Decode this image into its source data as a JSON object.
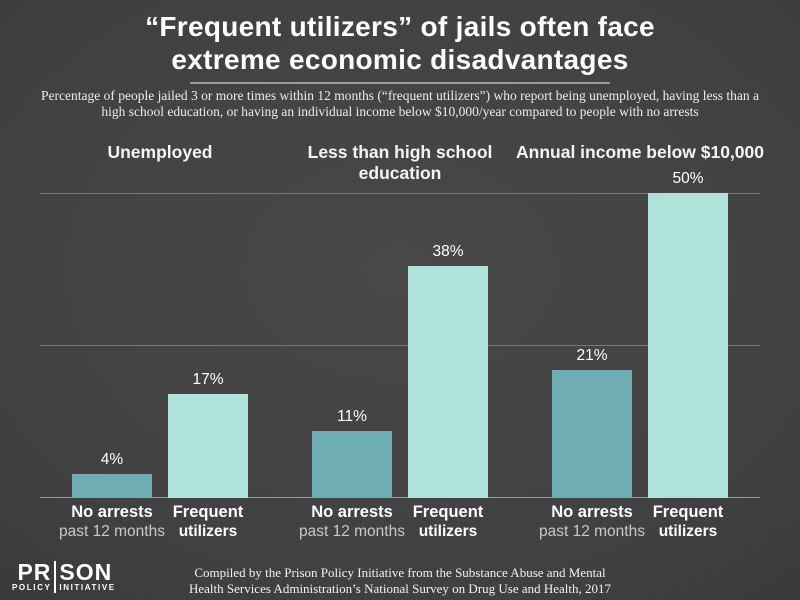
{
  "title": {
    "line1": "“Frequent utilizers” of jails often face",
    "line2": "extreme economic disadvantages"
  },
  "subtitle": "Percentage of people jailed 3 or more times within 12 months (“frequent utilizers”) who report being unemployed, having less than a high school education, or having an individual income below $10,000/year compared to people with no arrests",
  "footer": {
    "line1": "Compiled by the Prison Policy Initiative from the Substance Abuse and Mental",
    "line2": "Health Services Administration’s National Survey on Drug Use and Health, 2017"
  },
  "logo": {
    "top_left": "PR",
    "top_right": "SON",
    "bottom_left": "POLICY",
    "bottom_right": "INITIATIVE"
  },
  "colors": {
    "bar_no_arrests": "#6FADB5",
    "bar_frequent_utilizers": "#ADE3D8",
    "background_center": "#484848",
    "background_edge": "#2A2A2A",
    "gridline": "rgba(255,255,255,0.28)"
  },
  "chart_data": {
    "type": "bar",
    "title": "“Frequent utilizers” of jails often face extreme economic disadvantages",
    "xlabel": "",
    "ylabel": "",
    "ylim": [
      0,
      50
    ],
    "grid": "horizontal lines at 0%, 25%, 50%",
    "legend_position": "none",
    "categories": [
      "Unemployed",
      "Less than high school education",
      "Annual income below $10,000"
    ],
    "series": [
      {
        "name": "No arrests past 12 months",
        "values": [
          4,
          11,
          21
        ],
        "color": "#6FADB5"
      },
      {
        "name": "Frequent utilizers",
        "values": [
          17,
          38,
          50
        ],
        "color": "#ADE3D8"
      }
    ],
    "groups": [
      {
        "header": "Unemployed",
        "bars": [
          {
            "value": 4,
            "value_label": "4%",
            "label_line1": "No arrests",
            "label_line2": "past 12 months"
          },
          {
            "value": 17,
            "value_label": "17%",
            "label_line1": "Frequent",
            "label_line2": "utilizers"
          }
        ]
      },
      {
        "header": "Less than high school education",
        "bars": [
          {
            "value": 11,
            "value_label": "11%",
            "label_line1": "No arrests",
            "label_line2": "past 12 months"
          },
          {
            "value": 38,
            "value_label": "38%",
            "label_line1": "Frequent",
            "label_line2": "utilizers"
          }
        ]
      },
      {
        "header": "Annual income below $10,000",
        "bars": [
          {
            "value": 21,
            "value_label": "21%",
            "label_line1": "No arrests",
            "label_line2": "past 12 months"
          },
          {
            "value": 50,
            "value_label": "50%",
            "label_line1": "Frequent",
            "label_line2": "utilizers"
          }
        ]
      }
    ]
  }
}
